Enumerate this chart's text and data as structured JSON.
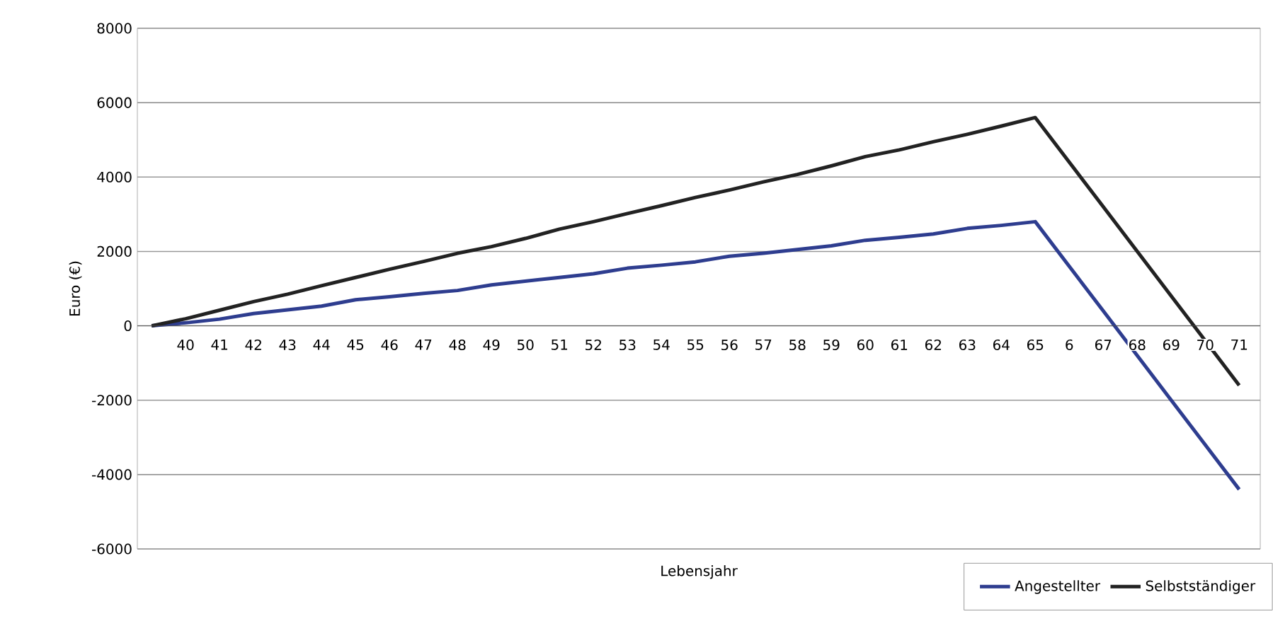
{
  "chart_data": {
    "type": "line",
    "xlabel": "Lebensjahr",
    "ylabel": "Euro (€)",
    "categories": [
      null,
      "40",
      "41",
      "42",
      "43",
      "44",
      "45",
      "46",
      "47",
      "48",
      "49",
      "50",
      "51",
      "52",
      "53",
      "54",
      "55",
      "56",
      "57",
      "58",
      "59",
      "60",
      "61",
      "62",
      "63",
      "64",
      "65",
      "6",
      "67",
      "68",
      "69",
      "70",
      "71"
    ],
    "series": [
      {
        "name": "Angestellter",
        "color": "#2e3d8f",
        "values": [
          0,
          80,
          180,
          330,
          430,
          530,
          700,
          780,
          870,
          950,
          1100,
          1200,
          1300,
          1400,
          1550,
          1630,
          1720,
          1870,
          1950,
          2050,
          2150,
          2300,
          2380,
          2470,
          2620,
          2700,
          2800,
          1600,
          400,
          -800,
          -2000,
          -3200,
          -4400
        ]
      },
      {
        "name": "Selbstständiger",
        "color": "#222222",
        "values": [
          0,
          190,
          420,
          650,
          850,
          1080,
          1300,
          1520,
          1730,
          1950,
          2130,
          2350,
          2600,
          2800,
          3020,
          3230,
          3450,
          3650,
          3870,
          4070,
          4300,
          4550,
          4730,
          4950,
          5150,
          5370,
          5600,
          4400,
          3200,
          2000,
          800,
          -400,
          -1600
        ]
      }
    ],
    "ylim": [
      -6000,
      8000
    ],
    "yticks": [
      -6000,
      -4000,
      -2000,
      0,
      2000,
      4000,
      6000,
      8000
    ],
    "grid": "y",
    "legend": "bottom right",
    "marker": "none",
    "line_style": "solid"
  }
}
